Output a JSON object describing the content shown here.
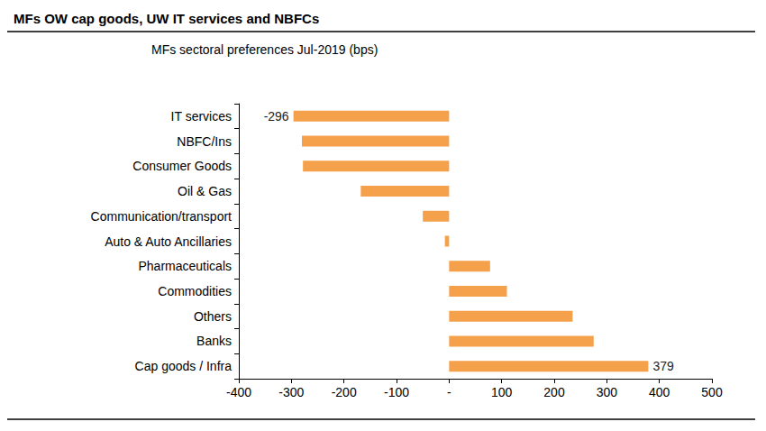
{
  "chart_data": {
    "type": "bar",
    "orientation": "horizontal",
    "title": "MFs OW cap goods, UW IT services and NBFCs",
    "subtitle": "MFs sectoral preferences Jul-2019 (bps)",
    "categories": [
      "IT services",
      "NBFC/Ins",
      "Consumer Goods",
      "Oil & Gas",
      "Communication/transport",
      "Auto & Auto Ancillaries",
      "Pharmaceuticals",
      "Commodities",
      "Others",
      "Banks",
      "Cap goods / Infra"
    ],
    "values": [
      -296,
      -280,
      -278,
      -168,
      -50,
      -8,
      78,
      110,
      235,
      275,
      379
    ],
    "value_labels": [
      "-296",
      null,
      null,
      null,
      null,
      null,
      null,
      null,
      null,
      null,
      "379"
    ],
    "color": "#f5a04a",
    "xlim": [
      -400,
      500
    ],
    "xticks": [
      -400,
      -300,
      -200,
      -100,
      {
        "value": 0,
        "label": "-"
      },
      100,
      200,
      300,
      400,
      500
    ],
    "grid": false,
    "data_labels": true
  }
}
